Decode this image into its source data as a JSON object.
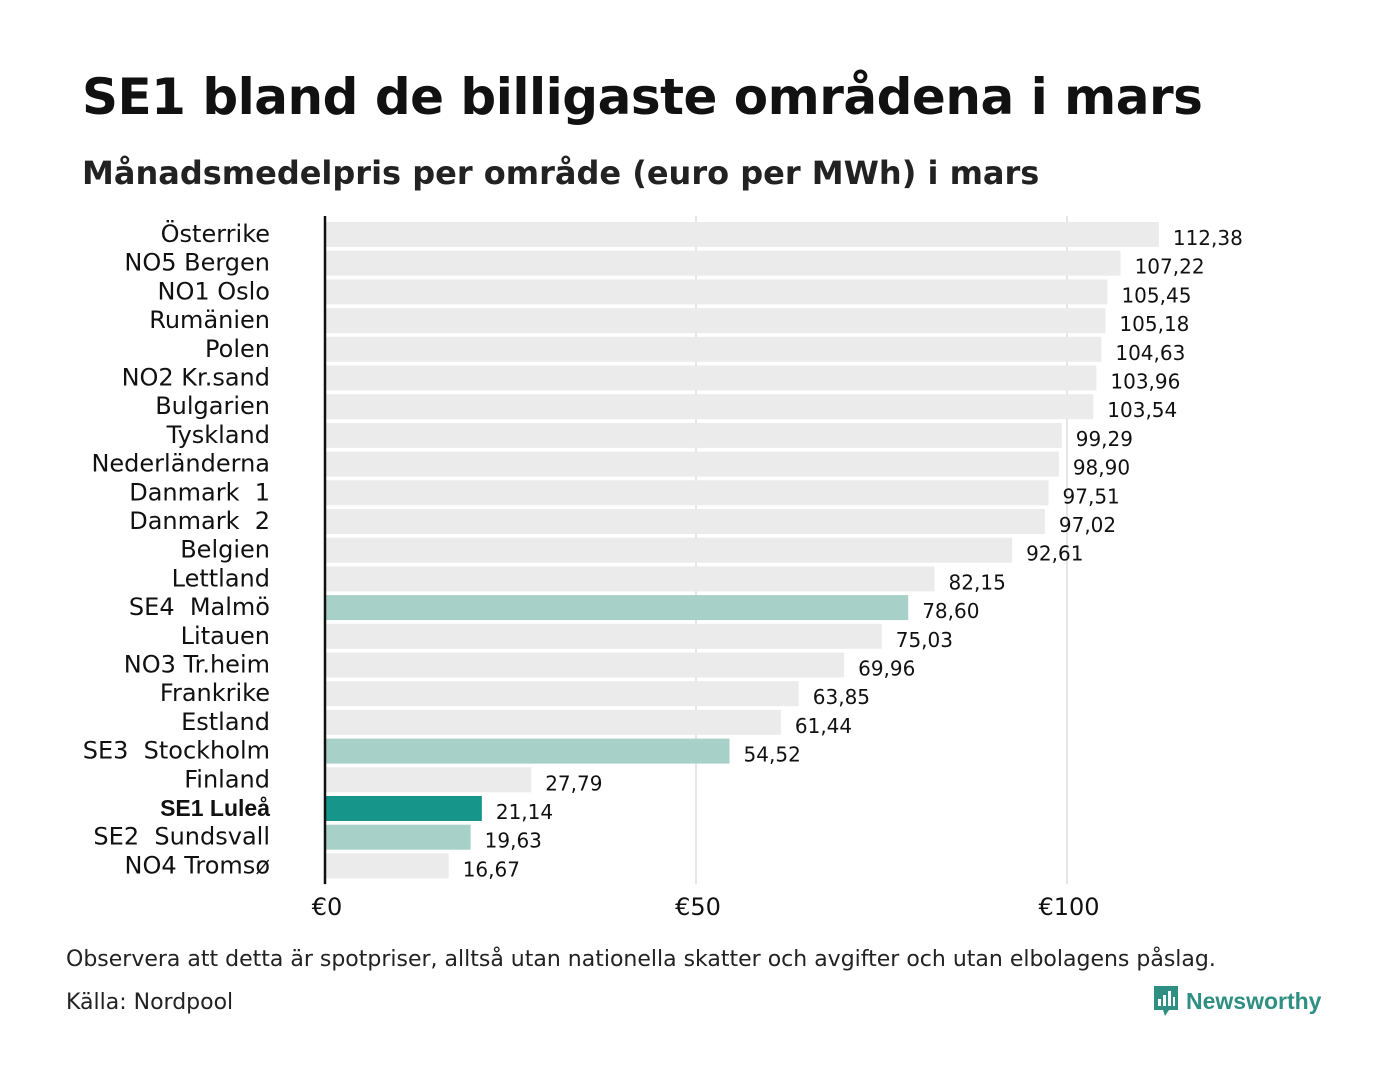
{
  "title": "SE1 bland de billigaste områdena i mars",
  "subtitle": "Månadsmedelpris per område (euro per MWh) i mars",
  "note": "Observera att detta är spotpriser, alltså utan nationella skatter och avgifter och utan elbolagens påslag.",
  "source": "Källa: Nordpool",
  "brand": "Newsworthy",
  "brand_icon": "bar-chart-chat-icon",
  "colors": {
    "default": "#ebebeb",
    "swedish": "#a7d0c8",
    "highlight": "#16968a",
    "axis": "#111111",
    "grid": "#cccccc",
    "brand": "#2f8f82"
  },
  "chart_data": {
    "type": "bar",
    "orientation": "horizontal",
    "categories": [
      "Österrike",
      "NO5 Bergen",
      "NO1 Oslo",
      "Rumänien",
      "Polen",
      "NO2 Kr.sand",
      "Bulgarien",
      "Tyskland",
      "Nederländerna",
      "Danmark  1",
      "Danmark  2",
      "Belgien",
      "Lettland",
      "SE4  Malmö",
      "Litauen",
      "NO3 Tr.heim",
      "Frankrike",
      "Estland",
      "SE3  Stockholm",
      "Finland",
      "SE1 Luleå",
      "SE2  Sundsvall",
      "NO4 Tromsø"
    ],
    "values": [
      112.38,
      107.22,
      105.45,
      105.18,
      104.63,
      103.96,
      103.54,
      99.29,
      98.9,
      97.51,
      97.02,
      92.61,
      82.15,
      78.6,
      75.03,
      69.96,
      63.85,
      61.44,
      54.52,
      27.79,
      21.14,
      19.63,
      16.67
    ],
    "value_labels": [
      "112,38",
      "107,22",
      "105,45",
      "105,18",
      "104,63",
      "103,96",
      "103,54",
      "99,29",
      "98,90",
      "97,51",
      "97,02",
      "92,61",
      "82,15",
      "78,60",
      "75,03",
      "69,96",
      "63,85",
      "61,44",
      "54,52",
      "27,79",
      "21,14",
      "19,63",
      "16,67"
    ],
    "categories_group": [
      "other",
      "other",
      "other",
      "other",
      "other",
      "other",
      "other",
      "other",
      "other",
      "other",
      "other",
      "other",
      "other",
      "swedish",
      "other",
      "other",
      "other",
      "other",
      "swedish",
      "other",
      "highlight",
      "swedish",
      "other"
    ],
    "x_ticks": [
      0,
      50,
      100
    ],
    "x_tick_labels": [
      "€0",
      "€50",
      "€100"
    ],
    "xlim": [
      0,
      118
    ],
    "grid": true,
    "title": "SE1 bland de billigaste områdena i mars",
    "xlabel": "",
    "ylabel": ""
  }
}
